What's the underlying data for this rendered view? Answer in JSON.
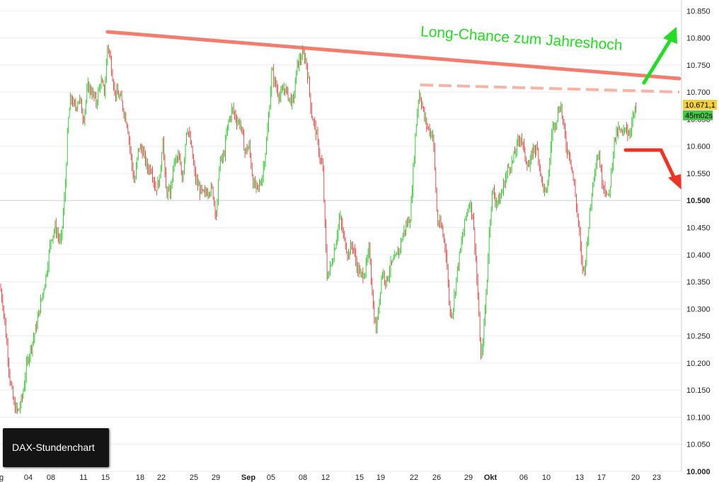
{
  "chart_data": {
    "type": "candlestick",
    "title": "DAX-Stundenchart",
    "ylim": [
      10000,
      10870
    ],
    "y_ticks": [
      "10.850",
      "10.800",
      "10.750",
      "10.700",
      "10.650",
      "10.600",
      "10.550",
      "10.500",
      "10.450",
      "10.400",
      "10.350",
      "10.300",
      "10.250",
      "10.200",
      "10.150",
      "10.100",
      "10.050",
      "10.000"
    ],
    "y_tick_values": [
      10850,
      10800,
      10750,
      10700,
      10650,
      10600,
      10550,
      10500,
      10450,
      10400,
      10350,
      10300,
      10250,
      10200,
      10150,
      10100,
      10050,
      10000
    ],
    "bold_y_ticks": [
      "10.500",
      "10.000"
    ],
    "x_ticks": [
      "g",
      "04",
      "08",
      "11",
      "15",
      "18",
      "22",
      "25",
      "29",
      "Sep",
      "05",
      "08",
      "12",
      "15",
      "19",
      "22",
      "26",
      "29",
      "Okt",
      "06",
      "10",
      "13",
      "17",
      "20",
      "23"
    ],
    "bold_x_ticks": [
      "Sep",
      "Okt"
    ],
    "price_path": [
      [
        0,
        10340
      ],
      [
        4,
        10310
      ],
      [
        10,
        10230
      ],
      [
        14,
        10170
      ],
      [
        20,
        10120
      ],
      [
        26,
        10110
      ],
      [
        32,
        10140
      ],
      [
        38,
        10200
      ],
      [
        44,
        10230
      ],
      [
        50,
        10260
      ],
      [
        56,
        10300
      ],
      [
        62,
        10340
      ],
      [
        66,
        10370
      ],
      [
        72,
        10430
      ],
      [
        78,
        10450
      ],
      [
        86,
        10420
      ],
      [
        92,
        10520
      ],
      [
        96,
        10640
      ],
      [
        100,
        10690
      ],
      [
        106,
        10670
      ],
      [
        112,
        10690
      ],
      [
        118,
        10650
      ],
      [
        124,
        10710
      ],
      [
        130,
        10700
      ],
      [
        136,
        10680
      ],
      [
        142,
        10720
      ],
      [
        148,
        10700
      ],
      [
        152,
        10790
      ],
      [
        156,
        10760
      ],
      [
        162,
        10700
      ],
      [
        170,
        10690
      ],
      [
        176,
        10660
      ],
      [
        180,
        10640
      ],
      [
        186,
        10570
      ],
      [
        190,
        10530
      ],
      [
        196,
        10600
      ],
      [
        202,
        10590
      ],
      [
        208,
        10560
      ],
      [
        214,
        10560
      ],
      [
        220,
        10520
      ],
      [
        226,
        10540
      ],
      [
        230,
        10620
      ],
      [
        234,
        10520
      ],
      [
        240,
        10510
      ],
      [
        246,
        10570
      ],
      [
        252,
        10580
      ],
      [
        258,
        10540
      ],
      [
        264,
        10640
      ],
      [
        270,
        10600
      ],
      [
        276,
        10540
      ],
      [
        282,
        10520
      ],
      [
        288,
        10510
      ],
      [
        294,
        10520
      ],
      [
        300,
        10520
      ],
      [
        306,
        10470
      ],
      [
        310,
        10570
      ],
      [
        316,
        10580
      ],
      [
        322,
        10640
      ],
      [
        328,
        10670
      ],
      [
        334,
        10650
      ],
      [
        340,
        10640
      ],
      [
        346,
        10590
      ],
      [
        352,
        10600
      ],
      [
        358,
        10530
      ],
      [
        364,
        10520
      ],
      [
        370,
        10540
      ],
      [
        376,
        10600
      ],
      [
        380,
        10660
      ],
      [
        384,
        10740
      ],
      [
        390,
        10710
      ],
      [
        396,
        10690
      ],
      [
        402,
        10710
      ],
      [
        408,
        10690
      ],
      [
        414,
        10680
      ],
      [
        420,
        10750
      ],
      [
        424,
        10760
      ],
      [
        428,
        10770
      ],
      [
        432,
        10760
      ],
      [
        436,
        10720
      ],
      [
        440,
        10660
      ],
      [
        446,
        10630
      ],
      [
        452,
        10580
      ],
      [
        456,
        10560
      ],
      [
        462,
        10360
      ],
      [
        468,
        10380
      ],
      [
        474,
        10420
      ],
      [
        480,
        10470
      ],
      [
        486,
        10430
      ],
      [
        492,
        10400
      ],
      [
        498,
        10420
      ],
      [
        504,
        10380
      ],
      [
        510,
        10360
      ],
      [
        516,
        10370
      ],
      [
        522,
        10410
      ],
      [
        528,
        10290
      ],
      [
        532,
        10260
      ],
      [
        536,
        10320
      ],
      [
        540,
        10370
      ],
      [
        546,
        10350
      ],
      [
        552,
        10380
      ],
      [
        558,
        10390
      ],
      [
        564,
        10410
      ],
      [
        570,
        10440
      ],
      [
        576,
        10460
      ],
      [
        580,
        10470
      ],
      [
        584,
        10560
      ],
      [
        588,
        10640
      ],
      [
        592,
        10700
      ],
      [
        596,
        10680
      ],
      [
        600,
        10650
      ],
      [
        606,
        10630
      ],
      [
        612,
        10620
      ],
      [
        618,
        10460
      ],
      [
        624,
        10450
      ],
      [
        630,
        10410
      ],
      [
        636,
        10290
      ],
      [
        640,
        10300
      ],
      [
        646,
        10370
      ],
      [
        652,
        10420
      ],
      [
        658,
        10470
      ],
      [
        664,
        10500
      ],
      [
        668,
        10470
      ],
      [
        672,
        10400
      ],
      [
        676,
        10300
      ],
      [
        680,
        10200
      ],
      [
        684,
        10270
      ],
      [
        688,
        10350
      ],
      [
        692,
        10460
      ],
      [
        696,
        10520
      ],
      [
        700,
        10500
      ],
      [
        706,
        10500
      ],
      [
        712,
        10530
      ],
      [
        718,
        10560
      ],
      [
        724,
        10570
      ],
      [
        730,
        10600
      ],
      [
        736,
        10620
      ],
      [
        742,
        10580
      ],
      [
        748,
        10560
      ],
      [
        754,
        10600
      ],
      [
        760,
        10590
      ],
      [
        766,
        10530
      ],
      [
        772,
        10510
      ],
      [
        776,
        10560
      ],
      [
        780,
        10630
      ],
      [
        786,
        10650
      ],
      [
        792,
        10680
      ],
      [
        796,
        10640
      ],
      [
        800,
        10600
      ],
      [
        806,
        10580
      ],
      [
        812,
        10520
      ],
      [
        818,
        10450
      ],
      [
        822,
        10380
      ],
      [
        826,
        10370
      ],
      [
        830,
        10430
      ],
      [
        836,
        10510
      ],
      [
        840,
        10560
      ],
      [
        846,
        10590
      ],
      [
        850,
        10540
      ],
      [
        856,
        10520
      ],
      [
        860,
        10500
      ],
      [
        868,
        10610
      ],
      [
        874,
        10630
      ],
      [
        880,
        10620
      ],
      [
        884,
        10640
      ],
      [
        888,
        10620
      ],
      [
        892,
        10640
      ],
      [
        896,
        10660
      ],
      [
        900,
        10671
      ]
    ],
    "annotations": [
      {
        "text": "Long-Chance zum Jahreshoch",
        "color": "#22dd22"
      }
    ],
    "last_price": "10.671,1",
    "countdown": "45m02s",
    "resistance_color": "#f07060",
    "up_candle_color": "#22c322",
    "down_candle_color": "#e03c3c"
  }
}
